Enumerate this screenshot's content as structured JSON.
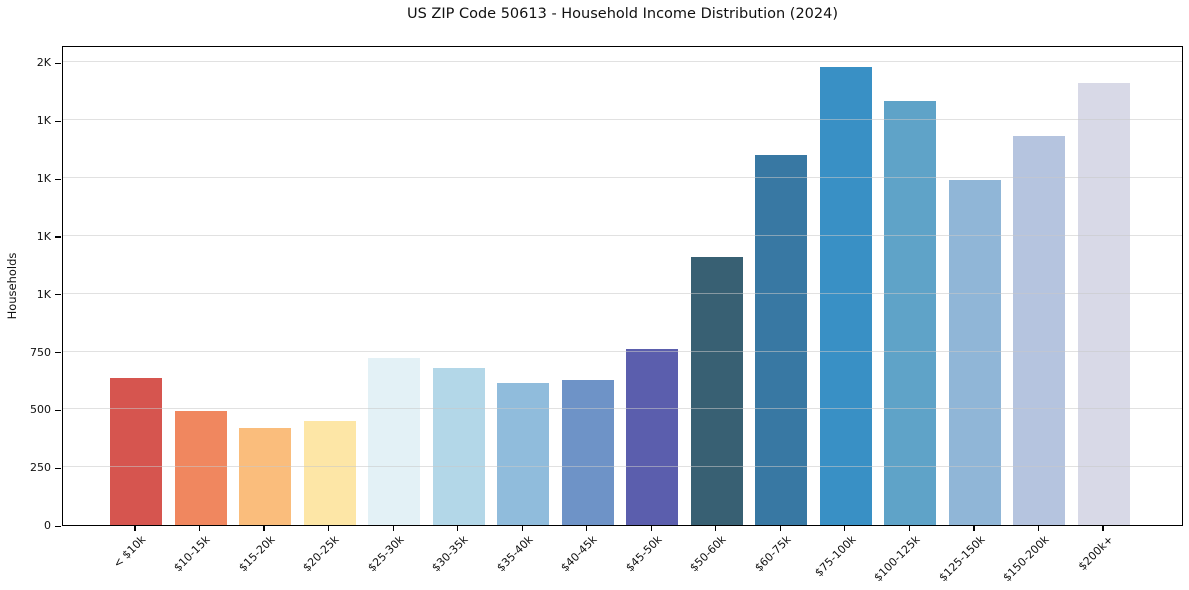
{
  "figure": {
    "title": "US ZIP Code 50613 - Household Income Distribution (2024)"
  },
  "chart_data": {
    "type": "bar",
    "title": "US ZIP Code 50613 - Household Income Distribution (2024)",
    "xlabel": "",
    "ylabel": "Households",
    "categories": [
      "< $10k",
      "$10-15k",
      "$15-20k",
      "$20-25k",
      "$25-30k",
      "$30-35k",
      "$35-40k",
      "$40-45k",
      "$45-50k",
      "$50-60k",
      "$60-75k",
      "$75-100k",
      "$100-125k",
      "$125-150k",
      "$150-200k",
      "$200k+"
    ],
    "values": [
      635,
      495,
      420,
      450,
      720,
      680,
      615,
      625,
      760,
      1160,
      1600,
      1980,
      1835,
      1490,
      1680,
      1910
    ],
    "bar_colors": [
      "#d6554f",
      "#f0875f",
      "#fabd7c",
      "#fde6a6",
      "#e3f1f6",
      "#b3d7e8",
      "#90bcdc",
      "#6e93c7",
      "#5b5ead",
      "#386073",
      "#3878a3",
      "#3990c5",
      "#5fa3c8",
      "#90b6d7",
      "#b5c4df",
      "#d8d9e7"
    ],
    "ylim": [
      0,
      2075
    ],
    "yticks": [
      {
        "value": 0,
        "label": "0"
      },
      {
        "value": 250,
        "label": "250"
      },
      {
        "value": 500,
        "label": "500"
      },
      {
        "value": 750,
        "label": "750"
      },
      {
        "value": 1000,
        "label": "1K"
      },
      {
        "value": 1250,
        "label": "1K"
      },
      {
        "value": 1500,
        "label": "1K"
      },
      {
        "value": 1750,
        "label": "1K"
      },
      {
        "value": 2000,
        "label": "2K"
      }
    ],
    "grid": "horizontal",
    "legend": "none"
  },
  "colors": {
    "background": "#ffffff",
    "spine": "#000000",
    "grid_overlay": "rgba(200,200,200,0.55)",
    "text": "#1a1a1a"
  }
}
